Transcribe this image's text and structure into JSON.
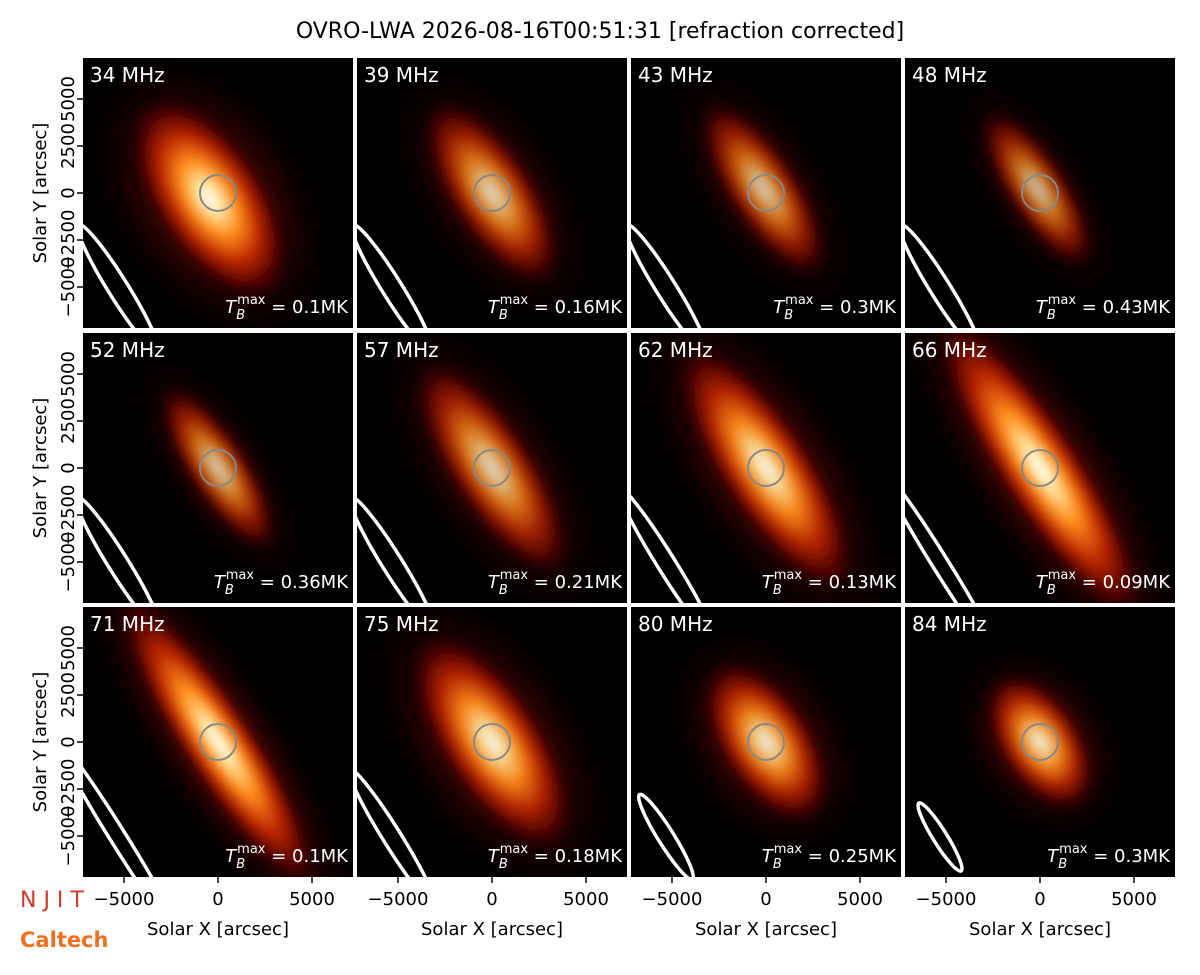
{
  "chart_data": {
    "type": "image-grid",
    "title": "OVRO-LWA 2026-08-16T00:51:31 [refraction corrected]",
    "xlabel": "Solar X [arcsec]",
    "ylabel": "Solar Y [arcsec]",
    "xlim": [
      -7180,
      7180
    ],
    "ylim": [
      -7180,
      7180
    ],
    "xticks": [
      {
        "value": -5000,
        "label": "−5000"
      },
      0,
      5000
    ],
    "yticks": [
      {
        "value": -5000,
        "label": "−5000"
      },
      {
        "value": -2500,
        "label": "−2500"
      },
      0,
      2500,
      5000
    ],
    "tb_symbol": "T",
    "tb_subscript": "B",
    "tb_superscript": "max",
    "panels": [
      {
        "label": "34 MHz",
        "tb_max_label": " = 0.1MK"
      },
      {
        "label": "39 MHz",
        "tb_max_label": " = 0.16MK"
      },
      {
        "label": "43 MHz",
        "tb_max_label": " = 0.3MK"
      },
      {
        "label": "48 MHz",
        "tb_max_label": " = 0.43MK"
      },
      {
        "label": "52 MHz",
        "tb_max_label": " = 0.36MK"
      },
      {
        "label": "57 MHz",
        "tb_max_label": " = 0.21MK"
      },
      {
        "label": "62 MHz",
        "tb_max_label": " = 0.13MK"
      },
      {
        "label": "66 MHz",
        "tb_max_label": " = 0.09MK"
      },
      {
        "label": "71 MHz",
        "tb_max_label": " = 0.1MK"
      },
      {
        "label": "75 MHz",
        "tb_max_label": " = 0.18MK"
      },
      {
        "label": "80 MHz",
        "tb_max_label": " = 0.25MK"
      },
      {
        "label": "84 MHz",
        "tb_max_label": " = 0.3MK"
      }
    ],
    "logos": [
      "N J I T",
      "Caltech"
    ]
  }
}
